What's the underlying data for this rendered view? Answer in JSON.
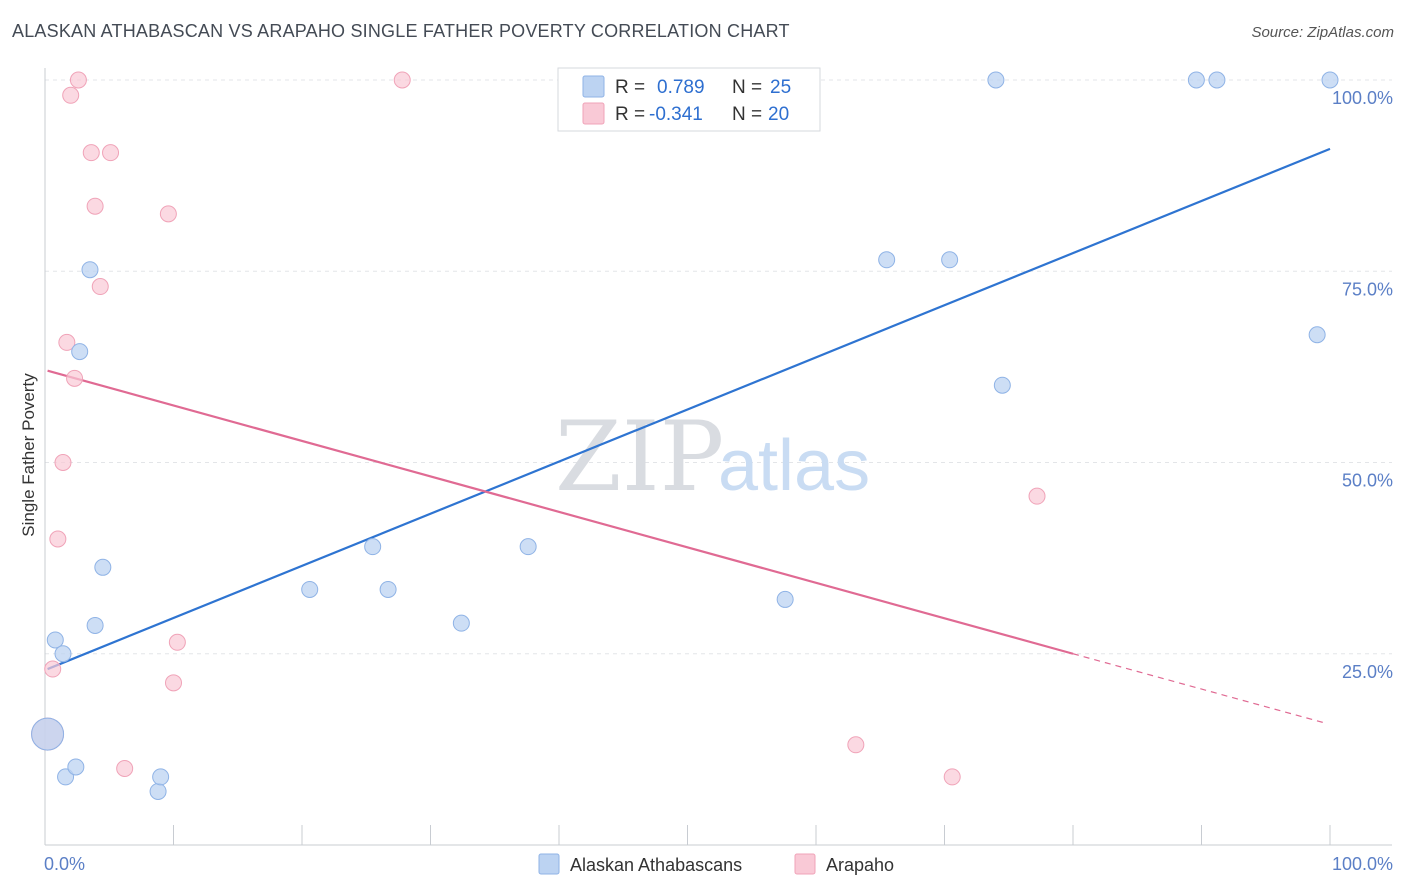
{
  "title": "ALASKAN ATHABASCAN VS ARAPAHO SINGLE FATHER POVERTY CORRELATION CHART",
  "source": "Source: ZipAtlas.com",
  "watermark": {
    "zip": "ZIP",
    "atlas": "atlas"
  },
  "legend": {
    "r_label": "R =",
    "n_label": "N =",
    "rows": [
      {
        "r": "0.789",
        "n": "25"
      },
      {
        "r": "-0.341",
        "n": "20"
      }
    ]
  },
  "bottom_legend": [
    "Alaskan Athabascans",
    "Arapaho"
  ],
  "colors": {
    "blue_fill": "#bcd3f2",
    "blue_stroke": "#8fb3e6",
    "blue_line": "#2e74d1",
    "pink_fill": "#f9c9d6",
    "pink_stroke": "#f0a3b8",
    "pink_line": "#e06a93",
    "axis_label": "#5b7fc6"
  },
  "chart_data": {
    "type": "scatter",
    "title": "ALASKAN ATHABASCAN VS ARAPAHO SINGLE FATHER POVERTY CORRELATION CHART",
    "xlabel": "",
    "ylabel": "Single Father Poverty",
    "xlim": [
      0,
      100
    ],
    "ylim": [
      0,
      100
    ],
    "x_tick_labels": [
      "0.0%",
      "100.0%"
    ],
    "y_tick_labels": [
      "25.0%",
      "50.0%",
      "75.0%",
      "100.0%"
    ],
    "y_ticks": [
      25,
      50,
      75,
      100
    ],
    "grid": true,
    "series": [
      {
        "name": "Alaskan Athabascans",
        "color": "blue",
        "points": [
          [
            0.2,
            14.5
          ],
          [
            0.8,
            26.8
          ],
          [
            1.4,
            25.0
          ],
          [
            1.6,
            8.9
          ],
          [
            2.4,
            10.2
          ],
          [
            2.7,
            64.5
          ],
          [
            3.5,
            75.2
          ],
          [
            3.9,
            28.7
          ],
          [
            4.5,
            36.3
          ],
          [
            8.8,
            7.0
          ],
          [
            9.0,
            8.9
          ],
          [
            20.6,
            33.4
          ],
          [
            25.5,
            39.0
          ],
          [
            26.7,
            33.4
          ],
          [
            32.4,
            29.0
          ],
          [
            37.6,
            39.0
          ],
          [
            57.6,
            32.1
          ],
          [
            65.5,
            76.5
          ],
          [
            70.4,
            76.5
          ],
          [
            74.5,
            60.1
          ],
          [
            74.0,
            100
          ],
          [
            89.6,
            100
          ],
          [
            91.2,
            100
          ],
          [
            99.0,
            66.7
          ],
          [
            100,
            100
          ]
        ],
        "trend": {
          "x": [
            0.2,
            100
          ],
          "y": [
            23.0,
            91.0
          ]
        }
      },
      {
        "name": "Arapaho",
        "color": "pink",
        "points": [
          [
            0.2,
            14.5
          ],
          [
            0.6,
            23.0
          ],
          [
            1.0,
            40.0
          ],
          [
            1.4,
            50.0
          ],
          [
            1.7,
            65.7
          ],
          [
            2.0,
            98.0
          ],
          [
            2.3,
            61.0
          ],
          [
            2.6,
            100
          ],
          [
            3.6,
            90.5
          ],
          [
            3.9,
            83.5
          ],
          [
            4.3,
            73.0
          ],
          [
            5.1,
            90.5
          ],
          [
            6.2,
            10.0
          ],
          [
            9.6,
            82.5
          ],
          [
            10.0,
            21.2
          ],
          [
            10.3,
            26.5
          ],
          [
            27.8,
            100
          ],
          [
            63.1,
            13.1
          ],
          [
            70.6,
            8.9
          ],
          [
            77.2,
            45.6
          ]
        ],
        "trend": {
          "x": [
            0.2,
            80
          ],
          "y": [
            62.0,
            25.0
          ]
        },
        "trend_dashed": {
          "x": [
            80,
            99.5
          ],
          "y": [
            25.0,
            16.0
          ]
        }
      }
    ]
  }
}
